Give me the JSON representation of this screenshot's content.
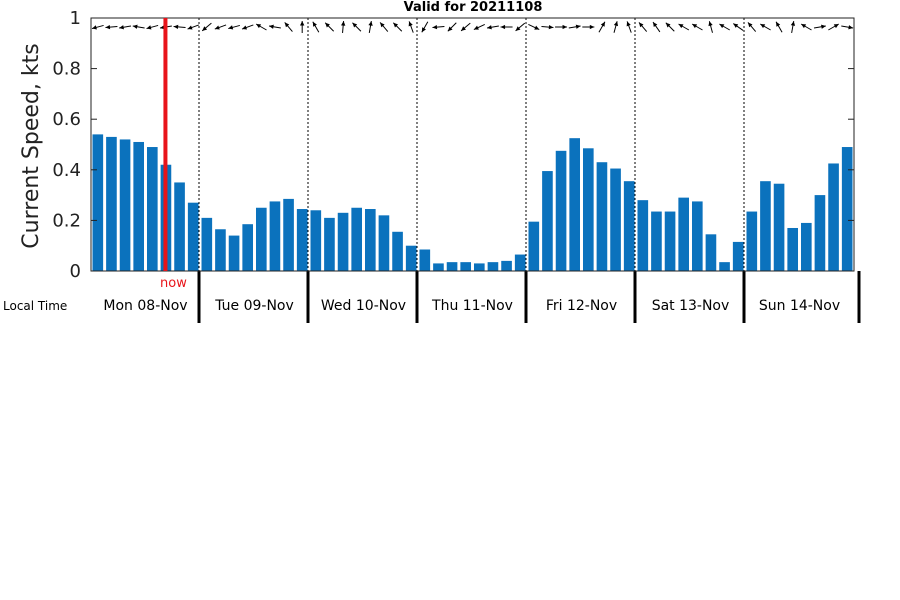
{
  "chart_data": {
    "type": "bar",
    "title": "Valid for 20211108",
    "ylabel": "Current Speed, kts",
    "ylim": [
      0,
      1
    ],
    "yticks": [
      "0",
      "0.2",
      "0.4",
      "0.6",
      "0.8",
      "1"
    ],
    "ytick_values": [
      0,
      0.2,
      0.4,
      0.6,
      0.8,
      1
    ],
    "local_time_label": "Local Time",
    "days": [
      "Mon 08-Nov",
      "Tue 09-Nov",
      "Wed 10-Nov",
      "Thu 11-Nov",
      "Fri 12-Nov",
      "Sat 13-Nov",
      "Sun 14-Nov"
    ],
    "bars_per_day": 8,
    "values": [
      0.54,
      0.53,
      0.52,
      0.51,
      0.49,
      0.42,
      0.35,
      0.27,
      0.21,
      0.165,
      0.14,
      0.185,
      0.25,
      0.275,
      0.285,
      0.245,
      0.24,
      0.21,
      0.23,
      0.25,
      0.245,
      0.22,
      0.155,
      0.1,
      0.085,
      0.03,
      0.035,
      0.035,
      0.03,
      0.035,
      0.04,
      0.065,
      0.195,
      0.395,
      0.475,
      0.525,
      0.485,
      0.43,
      0.405,
      0.355,
      0.28,
      0.235,
      0.235,
      0.29,
      0.275,
      0.145,
      0.035,
      0.115,
      0.235,
      0.355,
      0.345,
      0.17,
      0.19,
      0.3,
      0.425,
      0.49
    ],
    "direction_arrows_deg": [
      255,
      265,
      260,
      280,
      255,
      260,
      275,
      250,
      230,
      250,
      255,
      250,
      300,
      280,
      320,
      0,
      330,
      315,
      5,
      315,
      10,
      320,
      315,
      340,
      210,
      265,
      225,
      230,
      245,
      260,
      270,
      230,
      115,
      95,
      90,
      80,
      90,
      30,
      15,
      340,
      320,
      325,
      315,
      300,
      300,
      345,
      300,
      305,
      320,
      300,
      330,
      10,
      300,
      80,
      60,
      100
    ],
    "now_marker": {
      "label": "now",
      "x_index": 5
    },
    "colors": {
      "bar": "#0b72bd",
      "now": "#e8141a",
      "axis": "#222222"
    },
    "grid": false
  }
}
